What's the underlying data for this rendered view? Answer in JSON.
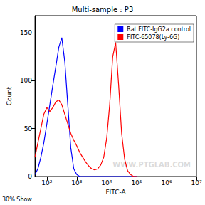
{
  "chart_data": {
    "type": "line",
    "title": "Multi-sample : P3",
    "x_label": "FITC-A",
    "y_label": "Count",
    "log": "x",
    "grid": false,
    "legend": "upper right",
    "x": [
      40,
      50,
      63,
      79,
      100,
      126,
      158,
      200,
      251,
      316,
      398,
      501,
      631,
      794,
      1000,
      1259,
      1585,
      1995,
      2512,
      3162,
      3981,
      5012,
      6310,
      7943,
      10000,
      12589,
      15849,
      19953,
      25119,
      31623,
      39811,
      50119,
      63096,
      79433,
      100000
    ],
    "series": [
      {
        "name": "Rat FITC-IgG2a control",
        "color": "#0000ff",
        "values": [
          2,
          8,
          20,
          35,
          55,
          75,
          95,
          115,
          135,
          145,
          120,
          75,
          30,
          8,
          2,
          0,
          0,
          0,
          0,
          0,
          0,
          0,
          0,
          0,
          0,
          0,
          0,
          0,
          0,
          0,
          0,
          0,
          0,
          0,
          0
        ]
      },
      {
        "name": "FITC-65078(Ly-6G)",
        "color": "#ff0000",
        "values": [
          20,
          35,
          50,
          65,
          72,
          68,
          72,
          78,
          80,
          75,
          65,
          55,
          45,
          38,
          32,
          25,
          20,
          15,
          11,
          8,
          7,
          8,
          12,
          20,
          40,
          75,
          125,
          140,
          95,
          45,
          18,
          6,
          2,
          0,
          0
        ]
      }
    ],
    "xlim": [
      40,
      10000000
    ],
    "xticks": [
      {
        "value": 100,
        "label": "10²"
      },
      {
        "value": 1000,
        "label": "10³"
      },
      {
        "value": 10000,
        "label": "10⁴"
      },
      {
        "value": 100000,
        "label": "10⁵"
      },
      {
        "value": 1000000,
        "label": "10⁶"
      },
      {
        "value": 10000000,
        "label": "10⁷"
      }
    ],
    "ylim": [
      0,
      168
    ],
    "yticks": [
      0,
      50,
      100,
      150
    ],
    "annotations": [
      {
        "text": "30% Show"
      },
      {
        "text": "WWW.PTGLAB.COM"
      }
    ]
  }
}
